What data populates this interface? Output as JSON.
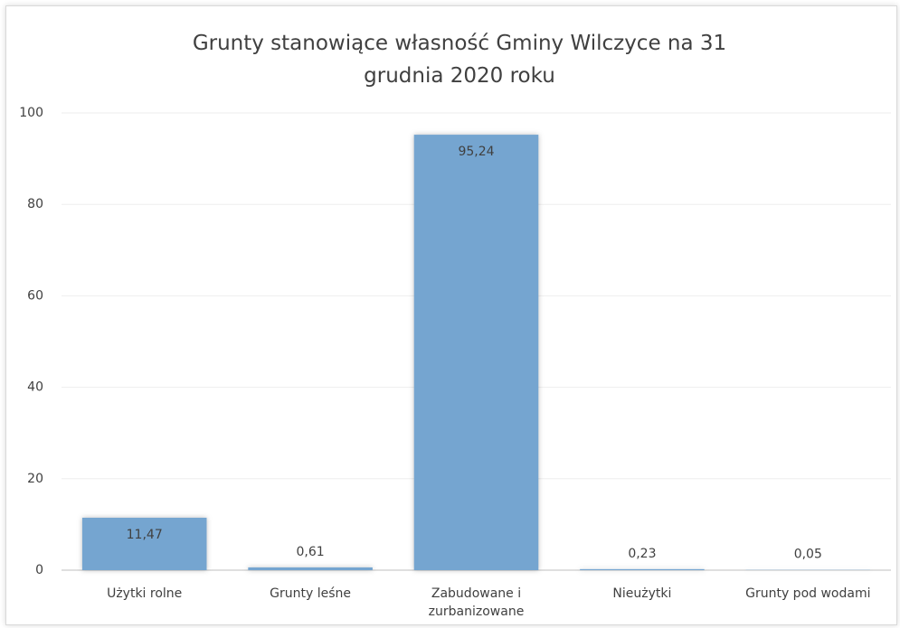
{
  "chart_data": {
    "type": "bar",
    "title": "Grunty stanowiące własność Gminy Wilczyce na 31 grudnia 2020 roku",
    "categories": [
      "Użytki rolne",
      "Grunty leśne",
      "Zabudowane i zurbanizowane",
      "Nieużytki",
      "Grunty pod wodami"
    ],
    "values": [
      11.47,
      0.61,
      95.24,
      0.23,
      0.05
    ],
    "value_labels": [
      "11,47",
      "0,61",
      "95,24",
      "0,23",
      "0,05"
    ],
    "color": "#75a5d0",
    "ylim": [
      0,
      100
    ],
    "yticks": [
      0,
      20,
      40,
      60,
      80,
      100
    ],
    "grid": true
  }
}
